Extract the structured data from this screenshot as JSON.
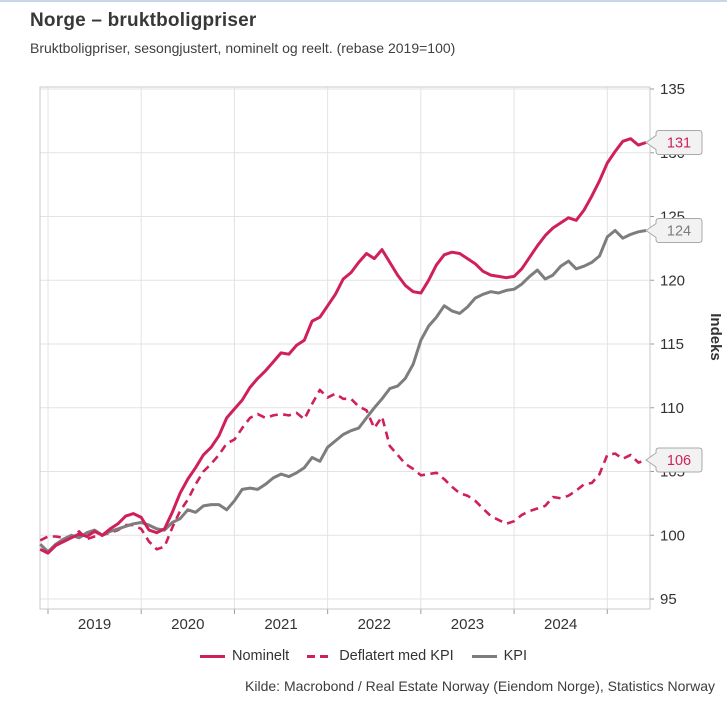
{
  "header": {
    "title": "Norge – bruktboligpriser",
    "subtitle": "Bruktboligpriser, sesongjustert, nominelt og reelt. (rebase 2019=100)"
  },
  "chart_data": {
    "type": "line",
    "title": "Norge – bruktboligpriser",
    "subtitle": "Bruktboligpriser, sesongjustert, nominelt og reelt. (rebase 2019=100)",
    "ylabel": "Indeks",
    "ylim": [
      95,
      135
    ],
    "y_ticks": [
      95,
      100,
      105,
      110,
      115,
      120,
      125,
      130,
      135
    ],
    "x_tick_years": [
      "2019",
      "2020",
      "2021",
      "2022",
      "2023",
      "2024"
    ],
    "x_start": "2018-12",
    "x_end": "2025-06",
    "x_frequency": "monthly",
    "grid": true,
    "legend_position": "bottom",
    "series": [
      {
        "name": "Nominelt",
        "color": "#d01f5d",
        "style": "solid",
        "end_label": "131",
        "values": [
          98.9,
          98.6,
          99.2,
          99.5,
          99.8,
          100.1,
          99.9,
          100.3,
          100.0,
          100.5,
          100.9,
          101.5,
          101.7,
          101.4,
          100.4,
          100.2,
          100.5,
          101.8,
          103.3,
          104.4,
          105.3,
          106.3,
          106.9,
          107.8,
          109.2,
          109.9,
          110.6,
          111.6,
          112.3,
          112.9,
          113.6,
          114.3,
          114.2,
          114.9,
          115.3,
          116.8,
          117.1,
          118.0,
          118.9,
          120.1,
          120.6,
          121.4,
          122.1,
          121.7,
          122.4,
          121.4,
          120.4,
          119.6,
          119.1,
          119.0,
          120.0,
          121.2,
          122.0,
          122.2,
          122.1,
          121.7,
          121.3,
          120.7,
          120.4,
          120.3,
          120.2,
          120.3,
          120.9,
          121.8,
          122.7,
          123.5,
          124.1,
          124.5,
          124.9,
          124.7,
          125.5,
          126.6,
          127.8,
          129.2,
          130.1,
          130.9,
          131.1,
          130.6,
          130.8
        ]
      },
      {
        "name": "Deflatert med KPI",
        "color": "#d01f5d",
        "style": "dashed",
        "end_label": "106",
        "values": [
          99.6,
          99.9,
          99.9,
          99.8,
          99.8,
          100.3,
          99.7,
          99.9,
          100.0,
          100.2,
          100.4,
          100.8,
          100.8,
          100.5,
          99.5,
          98.9,
          99.1,
          100.6,
          101.9,
          102.8,
          104.0,
          105.0,
          105.6,
          106.3,
          107.2,
          107.5,
          108.4,
          109.2,
          109.5,
          109.2,
          109.4,
          109.5,
          109.4,
          109.6,
          109.1,
          110.3,
          111.4,
          110.8,
          111.1,
          110.7,
          110.7,
          110.1,
          109.8,
          108.4,
          109.3,
          107.0,
          106.3,
          105.6,
          105.2,
          104.7,
          104.8,
          104.9,
          104.4,
          103.8,
          103.3,
          103.1,
          102.7,
          102.1,
          101.5,
          101.2,
          100.9,
          101.1,
          101.6,
          101.9,
          102.1,
          102.3,
          103.0,
          102.9,
          103.1,
          103.5,
          104.0,
          104.1,
          104.8,
          106.3,
          106.4,
          106.0,
          106.3,
          105.7,
          105.9
        ]
      },
      {
        "name": "KPI",
        "color": "#7d7d7d",
        "style": "solid",
        "end_label": "124",
        "values": [
          99.3,
          98.7,
          99.3,
          99.7,
          100.0,
          99.8,
          100.2,
          100.4,
          100.0,
          100.3,
          100.5,
          100.7,
          100.9,
          101.0,
          100.8,
          100.5,
          100.4,
          101.0,
          101.3,
          102.0,
          101.8,
          102.3,
          102.4,
          102.4,
          102.0,
          102.7,
          103.6,
          103.7,
          103.6,
          104.0,
          104.5,
          104.8,
          104.6,
          104.9,
          105.3,
          106.1,
          105.8,
          106.9,
          107.4,
          107.9,
          108.2,
          108.4,
          109.2,
          110.0,
          110.7,
          111.5,
          111.7,
          112.3,
          113.4,
          115.3,
          116.4,
          117.1,
          118.0,
          117.6,
          117.4,
          117.9,
          118.6,
          118.9,
          119.1,
          119.0,
          119.2,
          119.3,
          119.7,
          120.3,
          120.8,
          120.1,
          120.4,
          121.1,
          121.5,
          120.9,
          121.1,
          121.4,
          121.9,
          123.4,
          123.9,
          123.3,
          123.6,
          123.8,
          123.9
        ]
      }
    ],
    "colors": {
      "accent_pink": "#d01f5d",
      "series_gray": "#7d7d7d",
      "gridline": "#e3e3e3",
      "plot_border": "#c9c9c9",
      "callout_fill": "#f2f2f2",
      "callout_border": "#a9a9a9",
      "text": "#333333"
    }
  },
  "source": {
    "text": "Kilde: Macrobond / Real Estate Norway (Eiendom Norge), Statistics Norway"
  }
}
